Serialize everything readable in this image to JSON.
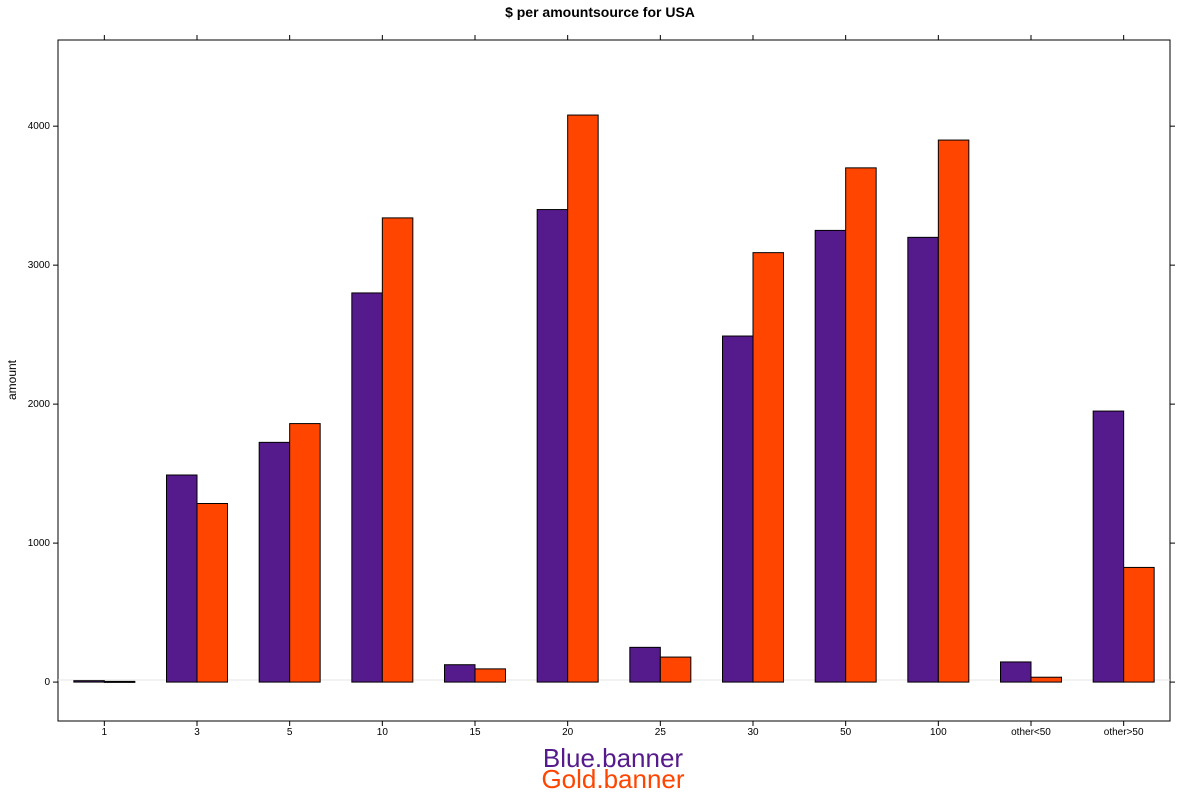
{
  "chart_data": {
    "type": "bar",
    "title": "$ per amountsource for USA",
    "xlabel": "",
    "ylabel": "amount",
    "categories": [
      "1",
      "3",
      "5",
      "10",
      "15",
      "20",
      "25",
      "30",
      "50",
      "100",
      "other<50",
      "other>50"
    ],
    "series": [
      {
        "name": "Blue.banner",
        "color": "#551a8b",
        "values": [
          10,
          1490,
          1725,
          2800,
          125,
          3400,
          250,
          2490,
          3250,
          3200,
          145,
          1950
        ]
      },
      {
        "name": "Gold.banner",
        "color": "#ff4500",
        "values": [
          5,
          1285,
          1860,
          3340,
          95,
          4080,
          180,
          3090,
          3700,
          3900,
          35,
          825
        ]
      }
    ],
    "ylim": [
      -280,
      4620
    ],
    "yticks": [
      "0",
      "1000",
      "2000",
      "3000",
      "4000"
    ],
    "grid": false,
    "legend_position": "bottom-center"
  }
}
